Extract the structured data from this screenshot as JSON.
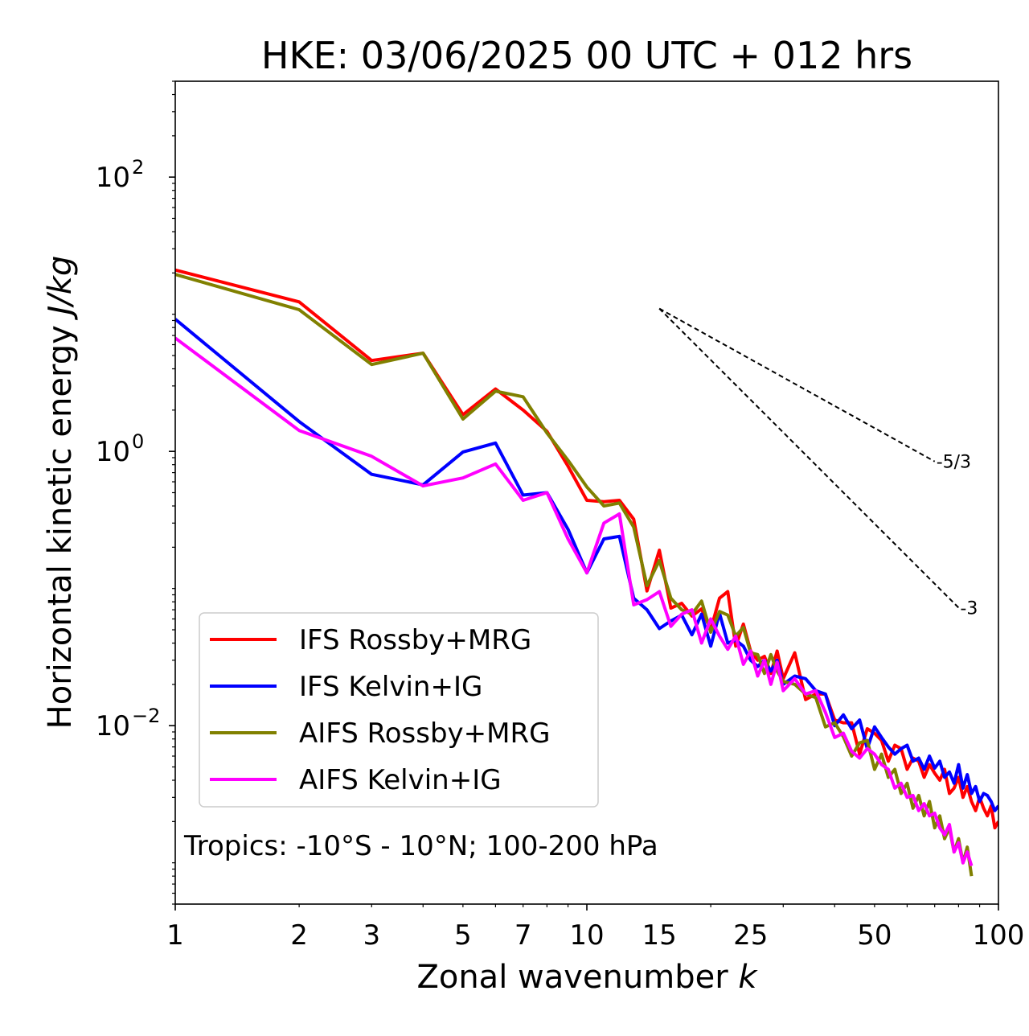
{
  "chart_data": {
    "type": "line",
    "title": "HKE: 03/06/2025 00 UTC + 012 hrs",
    "xlabel_text": "Zonal wavenumber",
    "xlabel_symbol": "k",
    "ylabel_text": "Horizontal kinetic energy",
    "ylabel_unit": "J/kg",
    "xscale": "log",
    "yscale": "log",
    "xlim": [
      1,
      100
    ],
    "ylim": [
      0.0005,
      500
    ],
    "x_ticks": [
      1,
      2,
      3,
      5,
      7,
      10,
      15,
      25,
      50,
      100
    ],
    "x_tick_labels": [
      "1",
      "2",
      "3",
      "5",
      "7",
      "10",
      "15",
      "25",
      "50",
      "100"
    ],
    "y_ticks": [
      0.01,
      1,
      100
    ],
    "y_tick_labels": [
      {
        "base": "10",
        "exp": "−2"
      },
      {
        "base": "10",
        "exp": "0"
      },
      {
        "base": "10",
        "exp": "2"
      }
    ],
    "grid": false,
    "legend_position": "lower-left",
    "annotation": "Tropics: -10°S - 10°N; 100-200 hPa",
    "reference_lines": [
      {
        "label": "-5/3",
        "slope": -1.6667,
        "x": [
          15,
          70
        ],
        "y0": 11.0
      },
      {
        "label": "-3",
        "slope": -3,
        "x": [
          15,
          80
        ],
        "y0": 11.0
      }
    ],
    "series": [
      {
        "name": "IFS Rossby+MRG",
        "color": "#ff0000",
        "x": [
          1,
          2,
          3,
          4,
          5,
          6,
          7,
          8,
          9,
          10,
          11,
          12,
          13,
          14,
          15,
          16,
          17,
          18,
          19,
          20,
          21,
          22,
          23,
          24,
          25,
          26,
          27,
          28,
          29,
          30,
          32,
          34,
          36,
          38,
          40,
          42,
          44,
          46,
          48,
          50,
          52,
          54,
          56,
          58,
          60,
          62,
          64,
          66,
          68,
          70,
          72,
          74,
          76,
          78,
          80,
          82,
          84,
          86,
          88,
          90,
          92,
          94,
          96,
          98,
          100
        ],
        "y": [
          21,
          12.3,
          4.6,
          5.2,
          1.85,
          2.85,
          2.0,
          1.4,
          0.78,
          0.44,
          0.43,
          0.44,
          0.32,
          0.096,
          0.19,
          0.072,
          0.078,
          0.063,
          0.071,
          0.05,
          0.085,
          0.095,
          0.038,
          0.055,
          0.035,
          0.03,
          0.032,
          0.024,
          0.035,
          0.022,
          0.034,
          0.0155,
          0.017,
          0.017,
          0.011,
          0.0105,
          0.0105,
          0.0062,
          0.0095,
          0.0088,
          0.0078,
          0.0055,
          0.0072,
          0.0068,
          0.0048,
          0.0058,
          0.0055,
          0.0042,
          0.0052,
          0.0045,
          0.004,
          0.0048,
          0.0032,
          0.0035,
          0.0042,
          0.003,
          0.0036,
          0.0028,
          0.0024,
          0.003,
          0.0025,
          0.0022,
          0.0026,
          0.0018,
          0.002
        ]
      },
      {
        "name": "IFS Kelvin+IG",
        "color": "#0000ff",
        "x": [
          1,
          2,
          3,
          4,
          5,
          6,
          7,
          8,
          9,
          10,
          11,
          12,
          13,
          14,
          15,
          16,
          17,
          18,
          19,
          20,
          21,
          22,
          23,
          24,
          25,
          26,
          27,
          28,
          29,
          30,
          32,
          34,
          36,
          38,
          40,
          42,
          44,
          46,
          48,
          50,
          52,
          54,
          56,
          58,
          60,
          62,
          64,
          66,
          68,
          70,
          72,
          74,
          76,
          78,
          80,
          82,
          84,
          86,
          88,
          90,
          92,
          94,
          96,
          98,
          100
        ],
        "y": [
          9.2,
          1.65,
          0.68,
          0.57,
          0.99,
          1.15,
          0.48,
          0.5,
          0.27,
          0.13,
          0.23,
          0.24,
          0.085,
          0.07,
          0.051,
          0.058,
          0.064,
          0.046,
          0.065,
          0.038,
          0.066,
          0.04,
          0.042,
          0.038,
          0.03,
          0.027,
          0.03,
          0.025,
          0.03,
          0.02,
          0.023,
          0.022,
          0.018,
          0.017,
          0.01,
          0.012,
          0.0095,
          0.011,
          0.0068,
          0.0098,
          0.0082,
          0.007,
          0.0062,
          0.0068,
          0.0072,
          0.0055,
          0.0058,
          0.0048,
          0.006,
          0.0049,
          0.0055,
          0.0042,
          0.0046,
          0.0038,
          0.0052,
          0.0035,
          0.0044,
          0.0032,
          0.0036,
          0.0028,
          0.0032,
          0.0031,
          0.0028,
          0.0024,
          0.0026
        ]
      },
      {
        "name": "AIFS Rossby+MRG",
        "color": "#808000",
        "x": [
          1,
          2,
          3,
          4,
          5,
          6,
          7,
          8,
          9,
          10,
          11,
          12,
          13,
          14,
          15,
          16,
          17,
          18,
          19,
          20,
          21,
          22,
          23,
          24,
          25,
          26,
          27,
          28,
          29,
          30,
          32,
          34,
          36,
          38,
          40,
          42,
          44,
          46,
          48,
          50,
          52,
          54,
          56,
          58,
          60,
          62,
          64,
          66,
          68,
          70,
          72,
          74,
          76,
          78,
          80,
          82,
          84,
          86
        ],
        "y": [
          19.5,
          10.8,
          4.3,
          5.2,
          1.72,
          2.75,
          2.5,
          1.36,
          0.86,
          0.55,
          0.4,
          0.42,
          0.28,
          0.105,
          0.16,
          0.085,
          0.07,
          0.065,
          0.081,
          0.048,
          0.068,
          0.064,
          0.045,
          0.052,
          0.034,
          0.033,
          0.024,
          0.033,
          0.025,
          0.021,
          0.02,
          0.017,
          0.016,
          0.0098,
          0.0105,
          0.0083,
          0.006,
          0.0075,
          0.0078,
          0.0048,
          0.0062,
          0.0042,
          0.0048,
          0.0032,
          0.0038,
          0.0025,
          0.0031,
          0.0022,
          0.0028,
          0.0018,
          0.0022,
          0.0015,
          0.0018,
          0.0012,
          0.0015,
          0.001,
          0.0013,
          0.0008
        ]
      },
      {
        "name": "AIFS Kelvin+IG",
        "color": "#ff00ff",
        "x": [
          1,
          2,
          3,
          4,
          5,
          6,
          7,
          8,
          9,
          10,
          11,
          12,
          13,
          14,
          15,
          16,
          17,
          18,
          19,
          20,
          21,
          22,
          23,
          24,
          25,
          26,
          27,
          28,
          29,
          30,
          32,
          34,
          36,
          38,
          40,
          42,
          44,
          46,
          48,
          50,
          52,
          54,
          56,
          58,
          60,
          62,
          64,
          66,
          68,
          70,
          72,
          74,
          76,
          78,
          80,
          82,
          84,
          86
        ],
        "y": [
          6.7,
          1.42,
          0.92,
          0.56,
          0.64,
          0.81,
          0.44,
          0.5,
          0.23,
          0.13,
          0.3,
          0.35,
          0.076,
          0.083,
          0.095,
          0.053,
          0.065,
          0.07,
          0.04,
          0.06,
          0.045,
          0.036,
          0.045,
          0.028,
          0.035,
          0.023,
          0.03,
          0.02,
          0.029,
          0.018,
          0.022,
          0.017,
          0.018,
          0.0125,
          0.0082,
          0.0088,
          0.0065,
          0.0058,
          0.0068,
          0.0062,
          0.0052,
          0.0048,
          0.0035,
          0.0038,
          0.003,
          0.0031,
          0.0024,
          0.0027,
          0.0022,
          0.0023,
          0.0018,
          0.0016,
          0.0019,
          0.0012,
          0.0014,
          0.001,
          0.0012,
          0.00095
        ]
      }
    ]
  }
}
